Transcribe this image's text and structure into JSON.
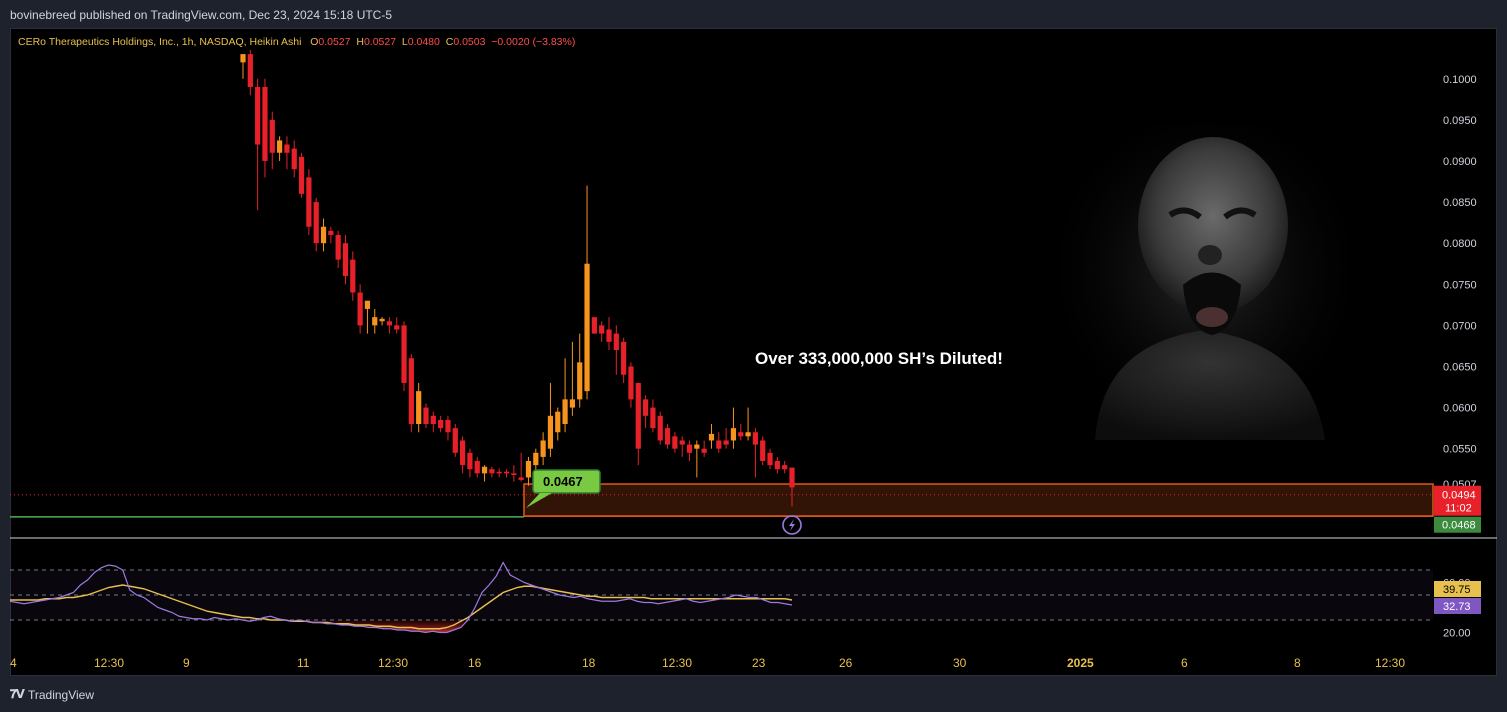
{
  "publisher": "bovinebreed published on TradingView.com, Dec 23, 2024 15:18 UTC-5",
  "legend": {
    "symbol": "CERo Therapeutics Holdings, Inc., 1h, NASDAQ, Heikin Ashi",
    "open_label": "O",
    "open": "0.0527",
    "high_label": "H",
    "high": "0.0527",
    "low_label": "L",
    "low": "0.0480",
    "close_label": "C",
    "close": "0.0503",
    "change": "−0.0020 (−3.83%)"
  },
  "annotation": "Over 333,000,000 SH’s Diluted!",
  "brand": "TradingView",
  "colors": {
    "up": "#f7941d",
    "down": "#e8202a",
    "support": "#4caf50",
    "rsi": "#9c7ae0",
    "rsi_ma": "#e8c04d",
    "zone_border": "#e05a1a",
    "price_label": "#e8202a",
    "green_label": "#3b8a3e"
  },
  "chart_data": [
    {
      "type": "candlestick",
      "title": "CERo Therapeutics Holdings, Inc., 1h, NASDAQ, Heikin Ashi",
      "y_ticks": [
        "0.1000",
        "0.0950",
        "0.0900",
        "0.0850",
        "0.0800",
        "0.0750",
        "0.0700",
        "0.0650",
        "0.0600",
        "0.0550"
      ],
      "ylim": [
        0.0445,
        0.1035
      ],
      "x_ticks": [
        "4",
        "12:30",
        "9",
        "11",
        "12:30",
        "16",
        "18",
        "12:30",
        "23",
        "26",
        "30",
        "2025",
        "6",
        "8",
        "12:30"
      ],
      "candles": [
        {
          "o": 0.102,
          "h": 0.103,
          "l": 0.1,
          "c": 0.103
        },
        {
          "o": 0.103,
          "h": 0.1035,
          "l": 0.098,
          "c": 0.099
        },
        {
          "o": 0.099,
          "h": 0.1,
          "l": 0.084,
          "c": 0.092
        },
        {
          "o": 0.099,
          "h": 0.1,
          "l": 0.088,
          "c": 0.09
        },
        {
          "o": 0.095,
          "h": 0.096,
          "l": 0.089,
          "c": 0.091
        },
        {
          "o": 0.091,
          "h": 0.093,
          "l": 0.09,
          "c": 0.0925
        },
        {
          "o": 0.092,
          "h": 0.093,
          "l": 0.089,
          "c": 0.091
        },
        {
          "o": 0.0915,
          "h": 0.0925,
          "l": 0.088,
          "c": 0.089
        },
        {
          "o": 0.0905,
          "h": 0.091,
          "l": 0.0855,
          "c": 0.086
        },
        {
          "o": 0.088,
          "h": 0.089,
          "l": 0.081,
          "c": 0.082
        },
        {
          "o": 0.085,
          "h": 0.0855,
          "l": 0.079,
          "c": 0.08
        },
        {
          "o": 0.08,
          "h": 0.083,
          "l": 0.079,
          "c": 0.082
        },
        {
          "o": 0.0815,
          "h": 0.082,
          "l": 0.08,
          "c": 0.081
        },
        {
          "o": 0.081,
          "h": 0.0815,
          "l": 0.077,
          "c": 0.078
        },
        {
          "o": 0.08,
          "h": 0.081,
          "l": 0.075,
          "c": 0.076
        },
        {
          "o": 0.078,
          "h": 0.079,
          "l": 0.073,
          "c": 0.074
        },
        {
          "o": 0.074,
          "h": 0.075,
          "l": 0.069,
          "c": 0.07
        },
        {
          "o": 0.072,
          "h": 0.073,
          "l": 0.069,
          "c": 0.073
        },
        {
          "o": 0.07,
          "h": 0.072,
          "l": 0.069,
          "c": 0.071
        },
        {
          "o": 0.0705,
          "h": 0.071,
          "l": 0.07,
          "c": 0.0708
        },
        {
          "o": 0.0705,
          "h": 0.071,
          "l": 0.069,
          "c": 0.07
        },
        {
          "o": 0.07,
          "h": 0.071,
          "l": 0.069,
          "c": 0.0695
        },
        {
          "o": 0.07,
          "h": 0.0705,
          "l": 0.062,
          "c": 0.063
        },
        {
          "o": 0.066,
          "h": 0.0665,
          "l": 0.057,
          "c": 0.058
        },
        {
          "o": 0.058,
          "h": 0.063,
          "l": 0.057,
          "c": 0.062
        },
        {
          "o": 0.06,
          "h": 0.0605,
          "l": 0.0575,
          "c": 0.058
        },
        {
          "o": 0.059,
          "h": 0.0595,
          "l": 0.057,
          "c": 0.058
        },
        {
          "o": 0.0585,
          "h": 0.059,
          "l": 0.057,
          "c": 0.0575
        },
        {
          "o": 0.0585,
          "h": 0.059,
          "l": 0.056,
          "c": 0.057
        },
        {
          "o": 0.0575,
          "h": 0.058,
          "l": 0.054,
          "c": 0.0545
        },
        {
          "o": 0.056,
          "h": 0.0565,
          "l": 0.052,
          "c": 0.053
        },
        {
          "o": 0.0545,
          "h": 0.055,
          "l": 0.0515,
          "c": 0.0525
        },
        {
          "o": 0.0535,
          "h": 0.054,
          "l": 0.0515,
          "c": 0.052
        },
        {
          "o": 0.052,
          "h": 0.053,
          "l": 0.051,
          "c": 0.0528
        },
        {
          "o": 0.0525,
          "h": 0.0528,
          "l": 0.0515,
          "c": 0.052
        },
        {
          "o": 0.0522,
          "h": 0.0526,
          "l": 0.0515,
          "c": 0.052
        },
        {
          "o": 0.0522,
          "h": 0.0525,
          "l": 0.0515,
          "c": 0.052
        },
        {
          "o": 0.052,
          "h": 0.053,
          "l": 0.051,
          "c": 0.0518
        },
        {
          "o": 0.0515,
          "h": 0.0545,
          "l": 0.051,
          "c": 0.0512
        },
        {
          "o": 0.0515,
          "h": 0.054,
          "l": 0.0505,
          "c": 0.0535
        },
        {
          "o": 0.053,
          "h": 0.055,
          "l": 0.052,
          "c": 0.0545
        },
        {
          "o": 0.054,
          "h": 0.057,
          "l": 0.053,
          "c": 0.056
        },
        {
          "o": 0.055,
          "h": 0.063,
          "l": 0.054,
          "c": 0.059
        },
        {
          "o": 0.057,
          "h": 0.06,
          "l": 0.056,
          "c": 0.0595
        },
        {
          "o": 0.058,
          "h": 0.066,
          "l": 0.057,
          "c": 0.061
        },
        {
          "o": 0.06,
          "h": 0.068,
          "l": 0.059,
          "c": 0.061
        },
        {
          "o": 0.061,
          "h": 0.069,
          "l": 0.06,
          "c": 0.0655
        },
        {
          "o": 0.062,
          "h": 0.087,
          "l": 0.061,
          "c": 0.0775
        },
        {
          "o": 0.071,
          "h": 0.071,
          "l": 0.069,
          "c": 0.069
        },
        {
          "o": 0.07,
          "h": 0.0705,
          "l": 0.068,
          "c": 0.069
        },
        {
          "o": 0.0695,
          "h": 0.071,
          "l": 0.067,
          "c": 0.068
        },
        {
          "o": 0.069,
          "h": 0.07,
          "l": 0.064,
          "c": 0.067
        },
        {
          "o": 0.068,
          "h": 0.0685,
          "l": 0.063,
          "c": 0.064
        },
        {
          "o": 0.065,
          "h": 0.0655,
          "l": 0.06,
          "c": 0.061
        },
        {
          "o": 0.063,
          "h": 0.063,
          "l": 0.053,
          "c": 0.055
        },
        {
          "o": 0.061,
          "h": 0.0615,
          "l": 0.0575,
          "c": 0.059
        },
        {
          "o": 0.06,
          "h": 0.061,
          "l": 0.057,
          "c": 0.0575
        },
        {
          "o": 0.059,
          "h": 0.0595,
          "l": 0.0555,
          "c": 0.056
        },
        {
          "o": 0.0575,
          "h": 0.058,
          "l": 0.055,
          "c": 0.0555
        },
        {
          "o": 0.0565,
          "h": 0.057,
          "l": 0.0545,
          "c": 0.055
        },
        {
          "o": 0.056,
          "h": 0.0565,
          "l": 0.054,
          "c": 0.0555
        },
        {
          "o": 0.0555,
          "h": 0.056,
          "l": 0.0535,
          "c": 0.0545
        },
        {
          "o": 0.055,
          "h": 0.056,
          "l": 0.0515,
          "c": 0.0555
        },
        {
          "o": 0.055,
          "h": 0.056,
          "l": 0.054,
          "c": 0.0545
        },
        {
          "o": 0.056,
          "h": 0.058,
          "l": 0.055,
          "c": 0.0568
        },
        {
          "o": 0.056,
          "h": 0.057,
          "l": 0.0545,
          "c": 0.055
        },
        {
          "o": 0.056,
          "h": 0.0575,
          "l": 0.055,
          "c": 0.0555
        },
        {
          "o": 0.056,
          "h": 0.06,
          "l": 0.055,
          "c": 0.0575
        },
        {
          "o": 0.057,
          "h": 0.058,
          "l": 0.056,
          "c": 0.0565
        },
        {
          "o": 0.0565,
          "h": 0.06,
          "l": 0.056,
          "c": 0.057
        },
        {
          "o": 0.057,
          "h": 0.0575,
          "l": 0.0515,
          "c": 0.0555
        },
        {
          "o": 0.056,
          "h": 0.0565,
          "l": 0.053,
          "c": 0.0535
        },
        {
          "o": 0.0545,
          "h": 0.055,
          "l": 0.0525,
          "c": 0.053
        },
        {
          "o": 0.0535,
          "h": 0.054,
          "l": 0.052,
          "c": 0.0525
        },
        {
          "o": 0.053,
          "h": 0.0535,
          "l": 0.052,
          "c": 0.0525
        },
        {
          "o": 0.0527,
          "h": 0.0527,
          "l": 0.048,
          "c": 0.0503
        }
      ],
      "support_line": 0.0467,
      "support_label": "0.0467",
      "zone": {
        "top": 0.0507,
        "bottom": 0.0468
      },
      "last_price_label": "0.0494",
      "countdown_label": "11:02",
      "support_price_label": "0.0468",
      "zone_top_label": "0.0507"
    },
    {
      "type": "line",
      "title": "RSI",
      "y_ticks": [
        "60.00",
        "20.00"
      ],
      "ylim": [
        10,
        90
      ],
      "bands": [
        70,
        50,
        30
      ],
      "series": [
        {
          "values": [
            45,
            44,
            43,
            44,
            45,
            46,
            47,
            48,
            50,
            52,
            58,
            62,
            68,
            72,
            74,
            73,
            70,
            54,
            50,
            48,
            44,
            40,
            38,
            36,
            33,
            32,
            31,
            31,
            30,
            32,
            31,
            30,
            31,
            30,
            29,
            30,
            32,
            33,
            31,
            30,
            29,
            30,
            29,
            28,
            28,
            27,
            27,
            26,
            26,
            25,
            25,
            24,
            24,
            23,
            23,
            22,
            22,
            21,
            21,
            20,
            21,
            20,
            20,
            22,
            24,
            30,
            40,
            52,
            58,
            65,
            76,
            66,
            63,
            60,
            58,
            56,
            54,
            52,
            50,
            49,
            48,
            49,
            47,
            46,
            45,
            45,
            45,
            46,
            47,
            45,
            44,
            44,
            43,
            44,
            45,
            46,
            47,
            45,
            44,
            45,
            46,
            47,
            48,
            50,
            49,
            48,
            48,
            46,
            44,
            44,
            43,
            42
          ]
        },
        {
          "values": [
            46,
            46,
            46,
            46,
            46,
            47,
            47,
            47,
            48,
            48,
            49,
            50,
            52,
            54,
            56,
            57,
            58,
            57,
            56,
            55,
            53,
            51,
            49,
            47,
            45,
            43,
            41,
            39,
            37,
            36,
            35,
            34,
            33,
            32,
            32,
            31,
            31,
            30,
            30,
            30,
            29,
            29,
            29,
            28,
            28,
            28,
            27,
            27,
            27,
            26,
            26,
            26,
            25,
            25,
            25,
            24,
            24,
            24,
            23,
            23,
            23,
            23,
            24,
            26,
            29,
            32,
            36,
            40,
            44,
            48,
            52,
            54,
            56,
            57,
            57,
            56,
            55,
            54,
            53,
            52,
            51,
            50,
            49,
            49,
            48,
            48,
            48,
            48,
            48,
            48,
            48,
            47,
            47,
            47,
            47,
            47,
            47,
            47,
            47,
            47,
            47,
            47,
            47,
            47,
            47,
            47,
            47,
            47,
            47,
            47,
            47,
            46
          ]
        }
      ],
      "rsi_value": "32.73",
      "ma_value": "39.75"
    }
  ]
}
